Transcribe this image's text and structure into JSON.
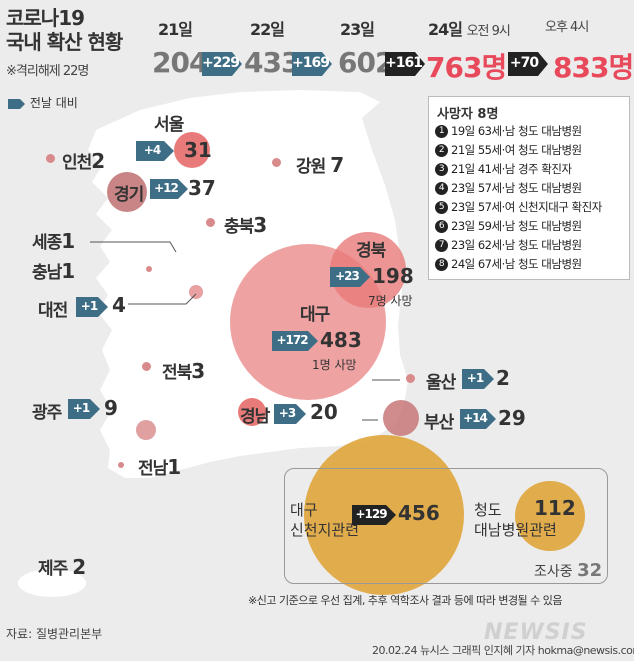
{
  "title_line1": "코로나19",
  "title_line2": "국내 확산 현황",
  "subtitle": "※격리해제 22명",
  "timeline": {
    "d21": {
      "label": "21일",
      "value": "204"
    },
    "d22": {
      "label": "22일",
      "value": "433"
    },
    "d23": {
      "label": "23일",
      "value": "602"
    },
    "d24am": {
      "label": "24일",
      "time": "오전 9시",
      "value": "763명"
    },
    "d24pm": {
      "time": "오후 4시",
      "value": "833명"
    },
    "inc": [
      "+229",
      "+169",
      "+161",
      "+70"
    ]
  },
  "legend": "전날 대비",
  "regions": {
    "seoul": {
      "name": "서울",
      "count": "31",
      "inc": "+4"
    },
    "incheon": {
      "name": "인천",
      "count": "2"
    },
    "gyeonggi": {
      "name": "경기",
      "count": "37",
      "inc": "+12"
    },
    "gangwon": {
      "name": "강원",
      "count": "7"
    },
    "chungbuk": {
      "name": "충북",
      "count": "3"
    },
    "sejong": {
      "name": "세종",
      "count": "1"
    },
    "chungnam": {
      "name": "충남",
      "count": "1"
    },
    "daejeon": {
      "name": "대전",
      "count": "4",
      "inc": "+1"
    },
    "gyeongbuk": {
      "name": "경북",
      "count": "198",
      "inc": "+23",
      "note": "7명 사망"
    },
    "daegu": {
      "name": "대구",
      "count": "483",
      "inc": "+172",
      "note": "1명 사망"
    },
    "jeonbuk": {
      "name": "전북",
      "count": "3"
    },
    "ulsan": {
      "name": "울산",
      "count": "2",
      "inc": "+1"
    },
    "gwangju": {
      "name": "광주",
      "count": "9",
      "inc": "+1"
    },
    "gyeongnam": {
      "name": "경남",
      "count": "20",
      "inc": "+3"
    },
    "busan": {
      "name": "부산",
      "count": "29",
      "inc": "+14"
    },
    "jeonnam": {
      "name": "전남",
      "count": "1"
    },
    "jeju": {
      "name": "제주",
      "count": "2"
    }
  },
  "deaths": {
    "title": "사망자 8명",
    "rows": [
      {
        "n": "1",
        "text": "19일  63세·남  청도 대남병원"
      },
      {
        "n": "2",
        "text": "21일  55세·여  청도 대남병원"
      },
      {
        "n": "3",
        "text": "21일  41세·남  경주 확진자"
      },
      {
        "n": "4",
        "text": "23일  57세·남  청도 대남병원"
      },
      {
        "n": "5",
        "text": "23일  57세·여  신천지대구 확진자"
      },
      {
        "n": "6",
        "text": "23일  59세·남  청도 대남병원"
      },
      {
        "n": "7",
        "text": "23일  62세·남  청도 대남병원"
      },
      {
        "n": "8",
        "text": "24일  67세·남  청도 대남병원"
      }
    ]
  },
  "clusters": {
    "shincheonji": {
      "line1": "대구",
      "line2": "신천지관련",
      "count": "456",
      "inc": "+129"
    },
    "daenam": {
      "line1": "청도",
      "line2": "대남병원관련",
      "count": "112"
    },
    "investigating": {
      "label": "조사중",
      "count": "32"
    }
  },
  "footnote": "※신고 기준으로 우선 집계, 추후 역학조사 결과 등에 따라 변경될 수 있음",
  "source": "자료: 질병관리본부",
  "credit": "20.02.24  뉴시스 그래픽  인지혜 기자  hokma@newsis.com",
  "watermark": "NEWSIS",
  "colors": {
    "arrow": "#3d6e86",
    "arrow_dark": "#222222",
    "red": "#e84a5c",
    "circle": "#e87a7a",
    "cluster": "#e0a53b",
    "map": "#ffffff"
  }
}
